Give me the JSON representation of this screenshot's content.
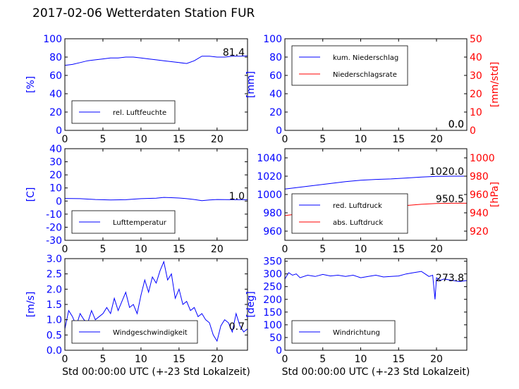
{
  "title": "2017-02-06 Wetterdaten Station FUR",
  "colors": {
    "blue": "#0000ff",
    "red": "#ff0000",
    "axis": "#000000"
  },
  "chart_data": [
    {
      "id": "humidity",
      "type": "line",
      "xlim": [
        0,
        24
      ],
      "ylim": [
        0,
        100
      ],
      "xticks": [
        0,
        5,
        10,
        15,
        20
      ],
      "yticks": [
        0,
        20,
        40,
        60,
        80,
        100
      ],
      "ylabel": "[%]",
      "ylabel_color": "#0000ff",
      "ytick_color": "#0000ff",
      "legend": [
        "rel. Luftfeuchte"
      ],
      "annotations": [
        "81.4"
      ],
      "series": [
        {
          "name": "rel. Luftfeuchte",
          "color": "#0000ff",
          "axis": "left",
          "x": [
            0,
            1,
            2,
            3,
            4,
            5,
            6,
            7,
            8,
            9,
            10,
            11,
            12,
            13,
            14,
            15,
            16,
            17,
            18,
            19,
            20,
            21,
            22,
            23,
            24
          ],
          "y": [
            71,
            72,
            74,
            76,
            77,
            78,
            79,
            79,
            80,
            80,
            79,
            78,
            77,
            76,
            75,
            74,
            73,
            76,
            81,
            81,
            80,
            80,
            81,
            81,
            81.4
          ]
        }
      ]
    },
    {
      "id": "precip",
      "type": "line",
      "xlim": [
        0,
        24
      ],
      "ylim": [
        0,
        100
      ],
      "ylim_right": [
        0,
        50
      ],
      "xticks": [
        0,
        5,
        10,
        15,
        20
      ],
      "yticks": [
        0,
        20,
        40,
        60,
        80,
        100
      ],
      "yticks_right": [
        0,
        10,
        20,
        30,
        40,
        50
      ],
      "ylabel": "[mm]",
      "ylabel_color": "#0000ff",
      "ytick_color": "#0000ff",
      "ylabel_right": "[mm/std]",
      "ylabel_right_color": "#ff0000",
      "ytick_right_color": "#ff0000",
      "legend": [
        "kum. Niederschlag",
        "Niederschlagsrate"
      ],
      "annotations": [
        "0.0",
        "0.0"
      ],
      "series": [
        {
          "name": "kum. Niederschlag",
          "color": "#0000ff",
          "axis": "left",
          "x": [
            0,
            24
          ],
          "y": [
            0,
            0
          ]
        },
        {
          "name": "Niederschlagsrate",
          "color": "#ff0000",
          "axis": "right",
          "x": [
            0,
            24
          ],
          "y": [
            0,
            0
          ]
        }
      ]
    },
    {
      "id": "temperature",
      "type": "line",
      "xlim": [
        0,
        24
      ],
      "ylim": [
        -30,
        40
      ],
      "xticks": [
        0,
        5,
        10,
        15,
        20
      ],
      "yticks": [
        -30,
        -20,
        -10,
        0,
        10,
        20,
        30,
        40
      ],
      "ylabel": "[C]",
      "ylabel_color": "#0000ff",
      "ytick_color": "#0000ff",
      "legend": [
        "Lufttemperatur"
      ],
      "annotations": [
        "1.0"
      ],
      "series": [
        {
          "name": "Lufttemperatur",
          "color": "#0000ff",
          "axis": "left",
          "x": [
            0,
            2,
            4,
            6,
            8,
            10,
            12,
            13,
            14,
            15,
            16,
            17,
            18,
            19,
            20,
            22,
            24
          ],
          "y": [
            2,
            1.8,
            1.2,
            0.8,
            1.0,
            1.8,
            2.2,
            2.8,
            2.6,
            2.3,
            1.8,
            1.2,
            0.3,
            0.8,
            1.2,
            1.0,
            1.0
          ]
        }
      ]
    },
    {
      "id": "pressure",
      "type": "line",
      "xlim": [
        0,
        24
      ],
      "ylim": [
        950,
        1050
      ],
      "ylim_right": [
        910,
        1010
      ],
      "xticks": [
        0,
        5,
        10,
        15,
        20
      ],
      "yticks": [
        960,
        980,
        1000,
        1020,
        1040
      ],
      "yticks_right": [
        920,
        940,
        960,
        980,
        1000
      ],
      "ylabel": "",
      "ytick_color": "#0000ff",
      "ylabel_right": "[hPa]",
      "ylabel_right_color": "#ff0000",
      "ytick_right_color": "#ff0000",
      "legend": [
        "red. Luftdruck",
        "abs. Luftdruck"
      ],
      "annotations": [
        "1020.0",
        "950.5"
      ],
      "series": [
        {
          "name": "red. Luftdruck",
          "color": "#0000ff",
          "axis": "left",
          "x": [
            0,
            2,
            4,
            6,
            8,
            10,
            12,
            14,
            16,
            18,
            20,
            22,
            24
          ],
          "y": [
            1006,
            1008,
            1010,
            1012,
            1014,
            1015.5,
            1016.5,
            1017,
            1018,
            1019,
            1019.8,
            1020,
            1020
          ]
        },
        {
          "name": "abs. Luftdruck",
          "color": "#ff0000",
          "axis": "right",
          "x": [
            0,
            2,
            4,
            6,
            8,
            10,
            12,
            14,
            16,
            18,
            20,
            22,
            24
          ],
          "y": [
            937,
            939,
            940.5,
            942,
            943.5,
            945,
            946,
            947,
            948,
            949.3,
            950.2,
            950.5,
            950.5
          ]
        }
      ]
    },
    {
      "id": "wind_speed",
      "type": "line",
      "xlim": [
        0,
        24
      ],
      "ylim": [
        0,
        3
      ],
      "xticks": [
        0,
        5,
        10,
        15,
        20
      ],
      "yticks": [
        0,
        0.5,
        1.0,
        1.5,
        2.0,
        2.5,
        3.0
      ],
      "ylabel": "[m/s]",
      "ylabel_color": "#0000ff",
      "ytick_color": "#0000ff",
      "xlabel": "Std 00:00:00 UTC (+-23 Std Lokalzeit)",
      "legend": [
        "Windgeschwindigkeit"
      ],
      "annotations": [
        "0.7"
      ],
      "series": [
        {
          "name": "Windgeschwindigkeit",
          "color": "#0000ff",
          "axis": "left",
          "x": [
            0,
            0.5,
            1,
            1.5,
            2,
            2.5,
            3,
            3.5,
            4,
            4.5,
            5,
            5.5,
            6,
            6.5,
            7,
            7.5,
            8,
            8.5,
            9,
            9.5,
            10,
            10.5,
            11,
            11.5,
            12,
            12.5,
            13,
            13.5,
            14,
            14.5,
            15,
            15.5,
            16,
            16.5,
            17,
            17.5,
            18,
            18.5,
            19,
            19.5,
            20,
            20.5,
            21,
            21.5,
            22,
            22.5,
            23,
            23.5,
            24
          ],
          "y": [
            0.7,
            1.3,
            1.1,
            0.8,
            1.2,
            1.0,
            0.9,
            1.3,
            1.0,
            1.1,
            1.2,
            1.4,
            1.2,
            1.7,
            1.3,
            1.6,
            1.9,
            1.4,
            1.5,
            1.2,
            1.8,
            2.3,
            1.9,
            2.4,
            2.2,
            2.6,
            2.9,
            2.3,
            2.5,
            1.7,
            2.0,
            1.5,
            1.6,
            1.3,
            1.4,
            1.1,
            1.2,
            1.0,
            0.9,
            0.5,
            0.3,
            0.8,
            1.0,
            0.9,
            0.6,
            1.2,
            0.8,
            0.6,
            0.7
          ]
        }
      ]
    },
    {
      "id": "wind_dir",
      "type": "line",
      "xlim": [
        0,
        24
      ],
      "ylim": [
        0,
        360
      ],
      "xticks": [
        0,
        5,
        10,
        15,
        20
      ],
      "yticks": [
        0,
        50,
        100,
        150,
        200,
        250,
        300,
        350
      ],
      "ylabel": "[deg]",
      "ylabel_color": "#0000ff",
      "ytick_color": "#0000ff",
      "xlabel": "Std 00:00:00 UTC (+-23 Std Lokalzeit)",
      "legend": [
        "Windrichtung"
      ],
      "annotations": [
        "273.8"
      ],
      "series": [
        {
          "name": "Windrichtung",
          "color": "#0000ff",
          "axis": "left",
          "x": [
            0,
            0.5,
            1,
            1.5,
            2,
            3,
            4,
            5,
            6,
            7,
            8,
            9,
            10,
            11,
            12,
            13,
            14,
            15,
            16,
            17,
            18,
            18.5,
            19,
            19.5,
            19.8,
            20,
            20.5,
            21,
            22,
            23,
            24
          ],
          "y": [
            280,
            305,
            295,
            300,
            285,
            295,
            290,
            298,
            292,
            295,
            290,
            295,
            285,
            290,
            295,
            288,
            290,
            292,
            300,
            305,
            310,
            300,
            290,
            295,
            200,
            285,
            275,
            280,
            275,
            270,
            274
          ]
        }
      ]
    }
  ]
}
